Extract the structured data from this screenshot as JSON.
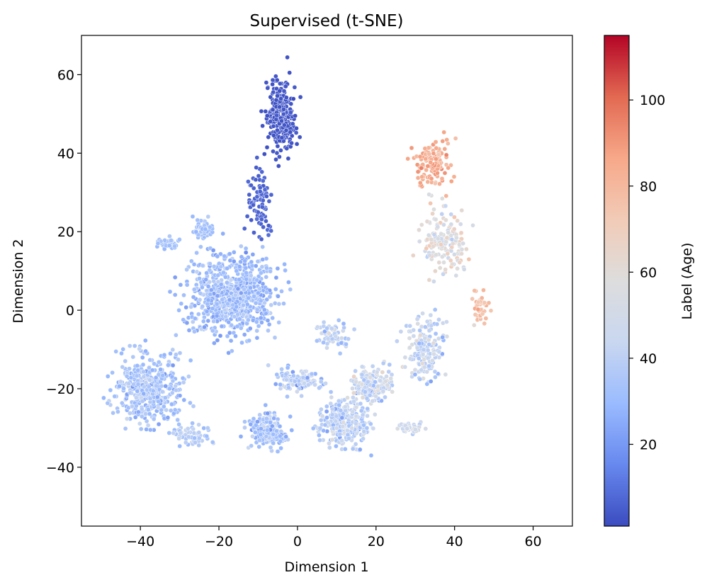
{
  "chart_data": {
    "type": "scatter",
    "title": "Supervised (t-SNE)",
    "xlabel": "Dimension 1",
    "ylabel": "Dimension 2",
    "xlim": [
      -55,
      70
    ],
    "ylim": [
      -55,
      70
    ],
    "xticks": [
      -40,
      -20,
      0,
      20,
      40,
      60
    ],
    "yticks": [
      -40,
      -20,
      0,
      20,
      40,
      60
    ],
    "xtick_labels": [
      "−40",
      "−20",
      "0",
      "20",
      "40",
      "60"
    ],
    "ytick_labels": [
      "−40",
      "−20",
      "0",
      "20",
      "40",
      "60"
    ],
    "grid": false,
    "colorbar": {
      "label": "Label (Age)",
      "colormap": "coolwarm",
      "range": [
        1,
        115
      ],
      "ticks": [
        20,
        40,
        60,
        80,
        100
      ],
      "tick_labels": [
        "20",
        "40",
        "60",
        "80",
        "100"
      ],
      "stops": [
        "#3b4cc0",
        "#6788ee",
        "#9abbff",
        "#c9d7f0",
        "#dddddd",
        "#f2cbb7",
        "#f7a889",
        "#e26952",
        "#b40426"
      ]
    },
    "clusters": [
      {
        "x": [
          -10,
          2
        ],
        "y": [
          35,
          64
        ],
        "age": [
          1,
          5
        ],
        "count": 260
      },
      {
        "x": [
          -15,
          -5
        ],
        "y": [
          15,
          40
        ],
        "age": [
          3,
          10
        ],
        "count": 90
      },
      {
        "x": [
          27,
          42
        ],
        "y": [
          28,
          47
        ],
        "age": [
          70,
          100
        ],
        "count": 120
      },
      {
        "x": [
          29,
          46
        ],
        "y": [
          5,
          30
        ],
        "age": [
          30,
          85
        ],
        "count": 160
      },
      {
        "x": [
          43,
          50
        ],
        "y": [
          -5,
          7
        ],
        "age": [
          60,
          95
        ],
        "count": 45
      },
      {
        "x": [
          25,
          40
        ],
        "y": [
          -22,
          2
        ],
        "age": [
          15,
          70
        ],
        "count": 160
      },
      {
        "x": [
          -33,
          0
        ],
        "y": [
          -12,
          20
        ],
        "age": [
          15,
          45
        ],
        "count": 700
      },
      {
        "x": [
          -50,
          -26
        ],
        "y": [
          -33,
          -7
        ],
        "age": [
          15,
          50
        ],
        "count": 420
      },
      {
        "x": [
          -33,
          -20
        ],
        "y": [
          -36,
          -28
        ],
        "age": [
          20,
          55
        ],
        "count": 70
      },
      {
        "x": [
          -15,
          0
        ],
        "y": [
          -37,
          -24
        ],
        "age": [
          15,
          50
        ],
        "count": 200
      },
      {
        "x": [
          2,
          22
        ],
        "y": [
          -38,
          -20
        ],
        "age": [
          15,
          65
        ],
        "count": 260
      },
      {
        "x": [
          10,
          27
        ],
        "y": [
          -26,
          -12
        ],
        "age": [
          15,
          75
        ],
        "count": 170
      },
      {
        "x": [
          -10,
          10
        ],
        "y": [
          -22,
          -14
        ],
        "age": [
          15,
          60
        ],
        "count": 110
      },
      {
        "x": [
          2,
          16
        ],
        "y": [
          -12,
          0
        ],
        "age": [
          20,
          60
        ],
        "count": 60
      },
      {
        "x": [
          24,
          34
        ],
        "y": [
          -32,
          -28
        ],
        "age": [
          30,
          70
        ],
        "count": 45
      },
      {
        "x": [
          -28,
          -20
        ],
        "y": [
          17,
          24
        ],
        "age": [
          25,
          40
        ],
        "count": 55
      },
      {
        "x": [
          -37,
          -29
        ],
        "y": [
          14,
          20
        ],
        "age": [
          25,
          40
        ],
        "count": 40
      }
    ]
  }
}
